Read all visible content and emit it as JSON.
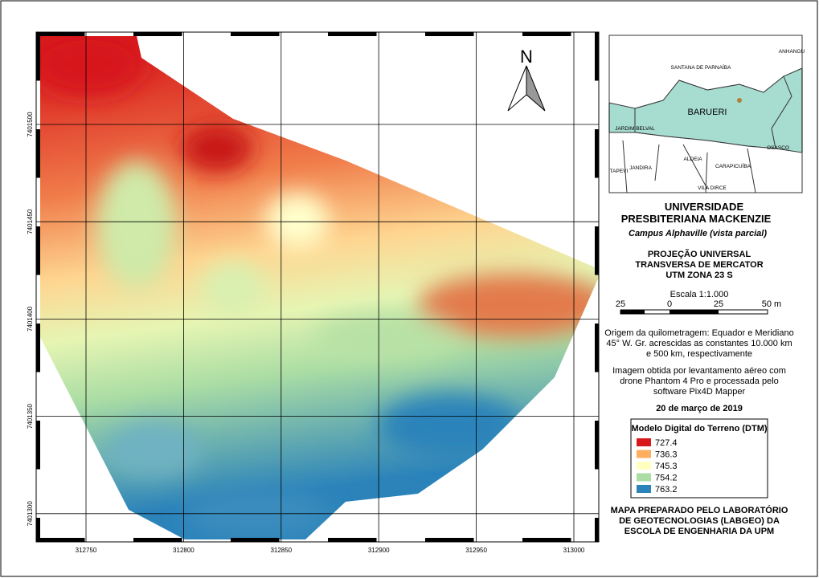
{
  "map": {
    "x_labels": [
      "312750",
      "312800",
      "312850",
      "312900",
      "312950",
      "313000"
    ],
    "y_labels": [
      "7401500",
      "7401450",
      "7401400",
      "7401350",
      "7401300"
    ],
    "north": "N"
  },
  "inset": {
    "labels": [
      "ANHANGU",
      "SANTANA DE PARNAÍBA",
      "BARUERI",
      "JARDIM BELVAL",
      "OSASCO",
      "JANDIRA",
      "ALDEIA",
      "CARAPICUÍBA",
      "TAPEVI",
      "VILA DIRCE"
    ]
  },
  "header": {
    "title_lines": [
      "UNIVERSIDADE",
      "PRESBITERIANA MACKENZIE"
    ],
    "subtitle": "Campus Alphaville (vista parcial)"
  },
  "projection": [
    "PROJEÇÃO UNIVERSAL",
    "TRANSVERSA DE MERCATOR",
    "UTM ZONA 23 S"
  ],
  "scale": {
    "title": "Escala 1:1.000",
    "labels": [
      "25",
      "0",
      "25",
      "50 m"
    ]
  },
  "notes": {
    "origin": [
      "Origem da quilometragem: Equador e Meridiano",
      "45° W. Gr. acrescidas as constantes 10.000 km",
      "e 500 km, respectivamente"
    ],
    "image": [
      "Imagem obtida por levantamento aéreo com",
      "drone Phantom 4 Pro e processada pelo",
      "software Pix4D Mapper"
    ],
    "date": "20 de março de 2019"
  },
  "legend": {
    "title": "Modelo Digital do Terreno (DTM)",
    "items": [
      {
        "label": "727.4",
        "color": "#d7191c"
      },
      {
        "label": "736.3",
        "color": "#fdae61"
      },
      {
        "label": "745.3",
        "color": "#ffffbf"
      },
      {
        "label": "754.2",
        "color": "#abdda4"
      },
      {
        "label": "763.2",
        "color": "#2b83ba"
      }
    ]
  },
  "footer": [
    "MAPA PREPARADO PELO LABORATÓRIO",
    "DE GEOTECNOLOGIAS (LABGEO) DA",
    "ESCOLA DE ENGENHARIA DA UPM"
  ]
}
